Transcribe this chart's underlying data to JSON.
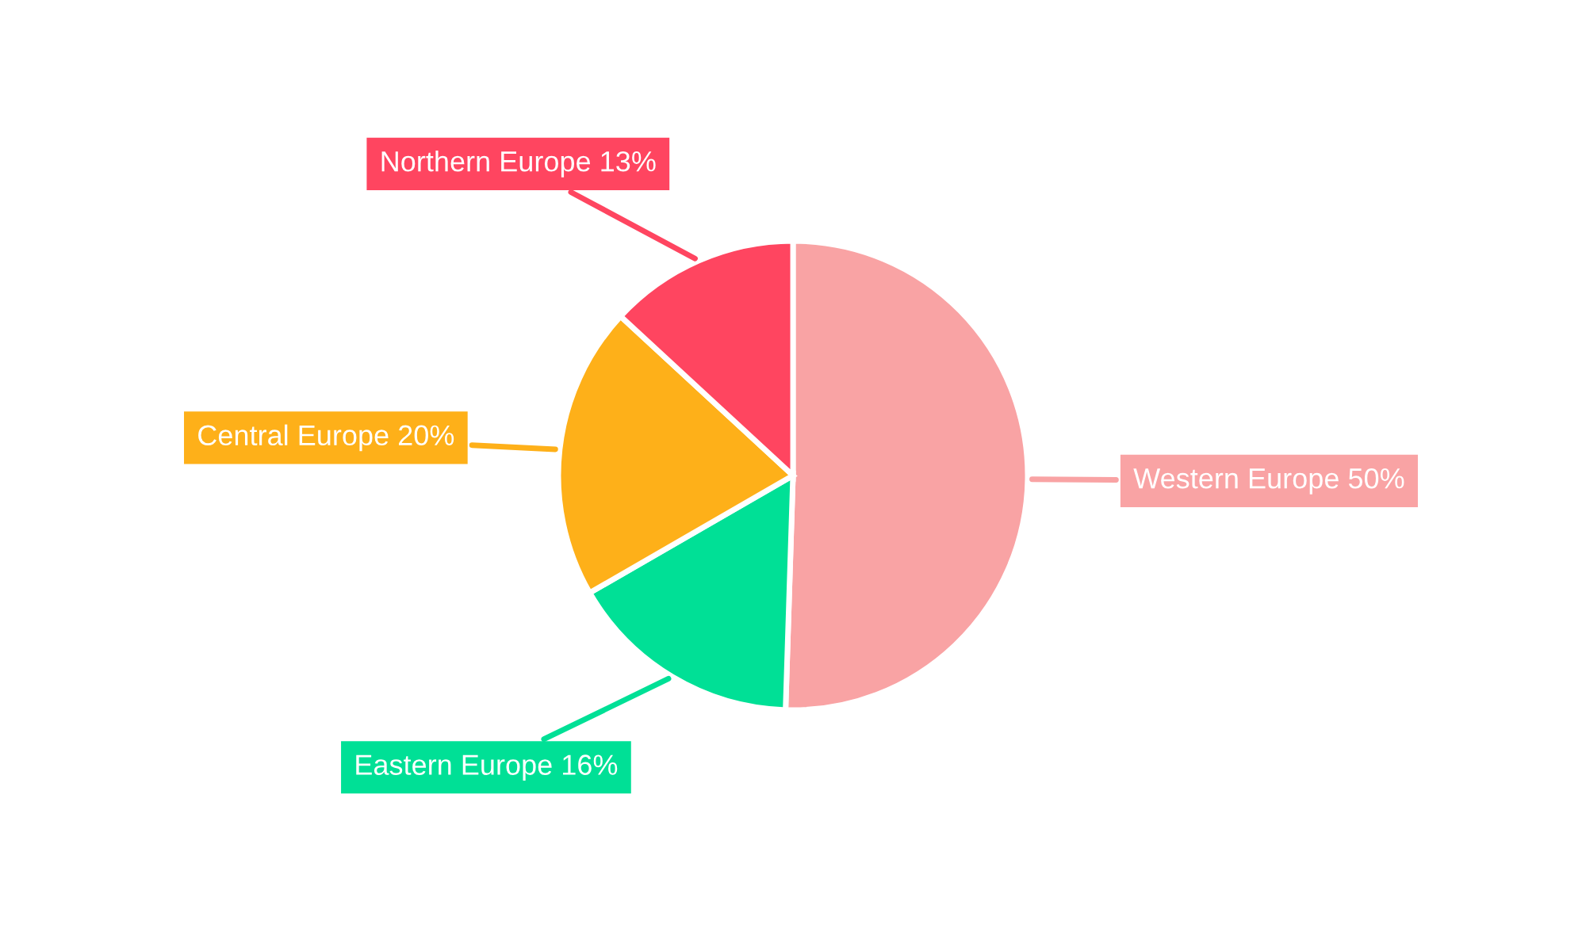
{
  "chart_data": {
    "type": "pie",
    "categories": [
      "Western Europe",
      "Eastern Europe",
      "Central Europe",
      "Northern Europe"
    ],
    "values": [
      50,
      16,
      20,
      13
    ],
    "colors": [
      "#f9a3a4",
      "#00e096",
      "#feb019",
      "#ff4560"
    ],
    "value_labels": [
      "50%",
      "16%",
      "20%",
      "13%"
    ]
  }
}
